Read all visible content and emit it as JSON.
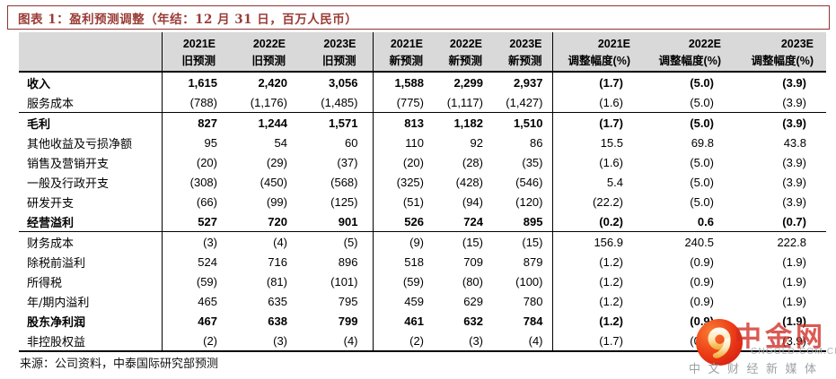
{
  "title": "图表 1：盈利预测调整（年结：12 月 31 日，百万人民币）",
  "source_note": "来源：公司资料，中泰国际研究部预测",
  "colors": {
    "title_red": "#9A3B35",
    "header_gray": "#D9D9D9",
    "watermark_red": "#D2312A"
  },
  "table": {
    "header": {
      "corner": "",
      "cells": [
        {
          "year": "2021E",
          "sub": "旧预测",
          "group": "old"
        },
        {
          "year": "2022E",
          "sub": "旧预测",
          "group": "old"
        },
        {
          "year": "2023E",
          "sub": "旧预测",
          "group": "old"
        },
        {
          "year": "2021E",
          "sub": "新预测",
          "group": "new"
        },
        {
          "year": "2022E",
          "sub": "新预测",
          "group": "new"
        },
        {
          "year": "2023E",
          "sub": "新预测",
          "group": "new"
        },
        {
          "year": "2021E",
          "sub": "调整幅度(%)",
          "group": "adj"
        },
        {
          "year": "2022E",
          "sub": "调整幅度(%)",
          "group": "adj"
        },
        {
          "year": "2023E",
          "sub": "调整幅度(%)",
          "group": "adj"
        }
      ]
    },
    "rows": [
      {
        "label": "收入",
        "bold": true,
        "rule_below": false,
        "values": [
          "1,615",
          "2,420",
          "3,056",
          "1,588",
          "2,299",
          "2,937",
          "(1.7)",
          "(5.0)",
          "(3.9)"
        ]
      },
      {
        "label": "服务成本",
        "bold": false,
        "rule_below": true,
        "values": [
          "(788)",
          "(1,176)",
          "(1,485)",
          "(775)",
          "(1,117)",
          "(1,427)",
          "(1.6)",
          "(5.0)",
          "(3.9)"
        ]
      },
      {
        "label": "毛利",
        "bold": true,
        "rule_below": false,
        "values": [
          "827",
          "1,244",
          "1,571",
          "813",
          "1,182",
          "1,510",
          "(1.7)",
          "(5.0)",
          "(3.9)"
        ]
      },
      {
        "label": "其他收益及亏损净额",
        "bold": false,
        "rule_below": false,
        "values": [
          "95",
          "54",
          "60",
          "110",
          "92",
          "86",
          "15.5",
          "69.8",
          "43.8"
        ]
      },
      {
        "label": "销售及营销开支",
        "bold": false,
        "rule_below": false,
        "values": [
          "(20)",
          "(29)",
          "(37)",
          "(20)",
          "(28)",
          "(35)",
          "(1.6)",
          "(5.0)",
          "(3.9)"
        ]
      },
      {
        "label": "一般及行政开支",
        "bold": false,
        "rule_below": false,
        "values": [
          "(308)",
          "(450)",
          "(568)",
          "(325)",
          "(428)",
          "(546)",
          "5.4",
          "(5.0)",
          "(3.9)"
        ]
      },
      {
        "label": "研发开支",
        "bold": false,
        "rule_below": false,
        "values": [
          "(66)",
          "(99)",
          "(125)",
          "(51)",
          "(94)",
          "(120)",
          "(22.2)",
          "(5.0)",
          "(3.9)"
        ]
      },
      {
        "label": "经营溢利",
        "bold": true,
        "rule_below": true,
        "values": [
          "527",
          "720",
          "901",
          "526",
          "724",
          "895",
          "(0.2)",
          "0.6",
          "(0.7)"
        ]
      },
      {
        "label": "财务成本",
        "bold": false,
        "rule_below": false,
        "values": [
          "(3)",
          "(4)",
          "(5)",
          "(9)",
          "(15)",
          "(15)",
          "156.9",
          "240.5",
          "222.8"
        ]
      },
      {
        "label": "除税前溢利",
        "bold": false,
        "rule_below": false,
        "values": [
          "524",
          "716",
          "896",
          "518",
          "709",
          "879",
          "(1.2)",
          "(0.9)",
          "(1.9)"
        ]
      },
      {
        "label": "所得税",
        "bold": false,
        "rule_below": false,
        "values": [
          "(59)",
          "(81)",
          "(101)",
          "(59)",
          "(80)",
          "(100)",
          "(1.2)",
          "(0.9)",
          "(1.9)"
        ]
      },
      {
        "label": "年/期内溢利",
        "bold": false,
        "rule_below": false,
        "values": [
          "465",
          "635",
          "795",
          "459",
          "629",
          "780",
          "(1.2)",
          "(0.9)",
          "(1.9)"
        ]
      },
      {
        "label": "股东净利润",
        "bold": true,
        "rule_below": false,
        "values": [
          "467",
          "638",
          "799",
          "461",
          "632",
          "784",
          "(1.2)",
          "(0.9)",
          "(1.9)"
        ]
      },
      {
        "label": "非控股权益",
        "bold": false,
        "rule_below": false,
        "values": [
          "(2)",
          "(3)",
          "(4)",
          "(2)",
          "(3)",
          "(4)",
          "(1.7)",
          "(0.9)",
          "(3.9)"
        ]
      }
    ]
  },
  "watermark": {
    "brand": "中金网",
    "domain": "CNGOLD.COM.CN",
    "tagline": "中文财经新媒体"
  }
}
